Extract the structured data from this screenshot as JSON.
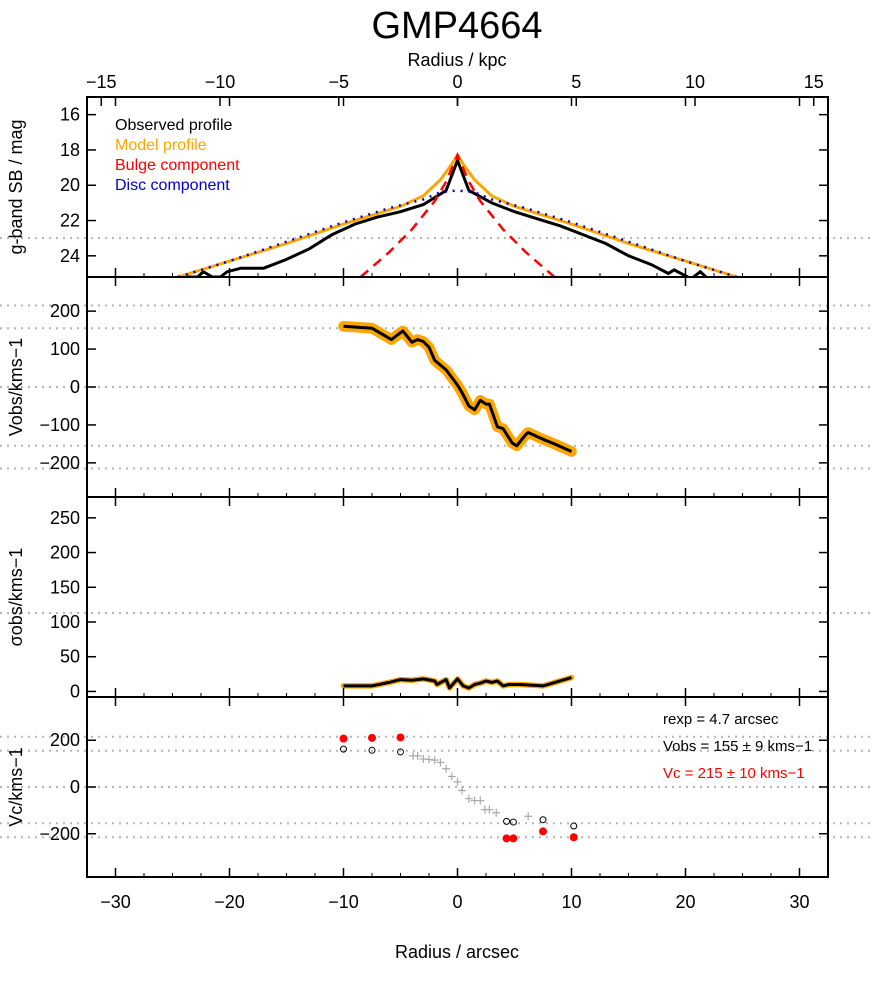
{
  "figure": {
    "title": "GMP4664",
    "top_axis_label": "Radius / kpc",
    "bottom_axis_label": "Radius / arcsec",
    "top_ticks": [
      "-15",
      "-10",
      "-5",
      "0",
      "5",
      "10",
      "15"
    ],
    "bottom_ticks": [
      "-30",
      "-20",
      "-10",
      "0",
      "10",
      "20",
      "30"
    ]
  },
  "chart_data": [
    {
      "panel": "surface-brightness",
      "type": "line",
      "ylabel": "g-band SB / mag",
      "xlim": [
        -32.5,
        32.5
      ],
      "ylim": [
        25.2,
        15.0
      ],
      "yticks": [
        "16",
        "18",
        "20",
        "22",
        "24"
      ],
      "xlim_kpc": [
        -15.6,
        15.6
      ],
      "reference_lines": [
        23.0
      ],
      "legend": [
        "Observed profile",
        "Model profile",
        "Bulge component",
        "Disc component"
      ],
      "colors": {
        "observed": "#000000",
        "model": "#FFA500",
        "bulge": "#FF0000",
        "disc": "#0000CC"
      },
      "series": [
        {
          "name": "Observed profile",
          "x": [
            -25,
            -24.5,
            -22.8,
            -22.3,
            -21.5,
            -20.8,
            -20.2,
            -19,
            -17,
            -15,
            -13,
            -11,
            -9,
            -7,
            -5,
            -3,
            -1,
            0,
            1,
            3,
            5,
            7,
            9,
            11,
            13,
            15,
            17,
            18.5,
            19,
            20.5,
            21.3,
            21.8,
            22.3
          ],
          "y": [
            25.5,
            25.2,
            25.2,
            24.9,
            25.2,
            25.2,
            24.9,
            24.7,
            24.7,
            24.2,
            23.6,
            22.8,
            22.2,
            21.8,
            21.5,
            21.1,
            20.3,
            18.6,
            20.3,
            21.0,
            21.5,
            21.9,
            22.3,
            22.8,
            23.3,
            24.0,
            24.5,
            25.0,
            24.8,
            25.3,
            24.9,
            25.2,
            25.4
          ]
        },
        {
          "name": "Model profile",
          "x": [
            -24.5,
            -20,
            -15,
            -10,
            -5,
            -3,
            -1.5,
            -0.5,
            0,
            0.5,
            1.5,
            3,
            5,
            10,
            15,
            20,
            24.5
          ],
          "y": [
            25.2,
            24.3,
            23.3,
            22.2,
            21.2,
            20.6,
            19.7,
            18.8,
            18.3,
            18.8,
            19.7,
            20.6,
            21.2,
            22.2,
            23.3,
            24.3,
            25.2
          ]
        },
        {
          "name": "Bulge component",
          "x": [
            -8.5,
            -6,
            -4,
            -2,
            -1,
            0,
            1,
            2,
            4,
            6,
            8.5
          ],
          "y": [
            25.2,
            23.8,
            22.5,
            20.9,
            19.8,
            18.3,
            19.8,
            20.9,
            22.5,
            23.8,
            25.2
          ]
        },
        {
          "name": "Disc component",
          "x": [
            -24.5,
            -20,
            -15,
            -10,
            -6,
            -3,
            -1.5,
            0,
            1.5,
            3,
            6,
            10,
            15,
            20,
            24.5
          ],
          "y": [
            25.2,
            24.3,
            23.2,
            22.1,
            21.3,
            20.8,
            20.4,
            20.3,
            20.4,
            20.8,
            21.3,
            22.1,
            23.2,
            24.3,
            25.2
          ]
        }
      ]
    },
    {
      "panel": "velocity",
      "type": "line",
      "ylabel": "Vobs/kms−1",
      "xlim": [
        -32.5,
        32.5
      ],
      "ylim": [
        -290,
        290
      ],
      "yticks": [
        "200",
        "100",
        "0",
        "−100",
        "−200"
      ],
      "reference_lines": [
        215,
        155,
        0,
        -155,
        -215
      ],
      "series": [
        {
          "name": "",
          "x": [
            -10,
            -7.5,
            -5.8,
            -4.8,
            -4,
            -3.5,
            -3,
            -2.5,
            -2,
            -1,
            0,
            0.4,
            1,
            1.5,
            2,
            2.5,
            2.8,
            3.5,
            4,
            4.8,
            5.2,
            5.6,
            6,
            6.2,
            7.5,
            8.5,
            10
          ],
          "y": [
            160,
            155,
            125,
            148,
            118,
            125,
            120,
            105,
            70,
            45,
            5,
            -15,
            -50,
            -60,
            -35,
            -45,
            -45,
            -105,
            -110,
            -148,
            -155,
            -140,
            -125,
            -120,
            -138,
            -150,
            -170
          ],
          "band": 28
        }
      ]
    },
    {
      "panel": "dispersion",
      "type": "line",
      "ylabel": "σobs/kms−1",
      "xlim": [
        -32.5,
        32.5
      ],
      "ylim": [
        -8,
        280
      ],
      "yticks": [
        "250",
        "200",
        "150",
        "100",
        "50",
        "0"
      ],
      "reference_lines": [
        113
      ],
      "series": [
        {
          "name": "",
          "x": [
            -10,
            -7.5,
            -6,
            -5,
            -4,
            -3,
            -2,
            -1.8,
            -1,
            -0.7,
            0,
            0.5,
            1,
            1.5,
            2,
            2.5,
            3,
            3.5,
            4,
            4.5,
            5,
            5.5,
            7.5,
            10
          ],
          "y": [
            8,
            8,
            13,
            17,
            16,
            18,
            15,
            10,
            17,
            5,
            18,
            8,
            5,
            10,
            12,
            15,
            13,
            15,
            8,
            10,
            10,
            10,
            8,
            20
          ],
          "band": 8
        }
      ]
    },
    {
      "panel": "circular-velocity",
      "type": "scatter",
      "ylabel": "Vc/kms−1",
      "xlim": [
        -32.5,
        32.5
      ],
      "ylim": [
        -385,
        385
      ],
      "yticks": [
        "200",
        "0",
        "−200"
      ],
      "reference_lines": [
        215,
        155,
        0,
        -155,
        -215
      ],
      "annotations": [
        "rexp = 4.7 arcsec",
        "Vobs = 155 ± 9 kms−1",
        "Vc = 215 ± 10 kms−1"
      ],
      "series": [
        {
          "name": "",
          "kind": "red-filled",
          "color": "#FF0000",
          "x": [
            -10,
            -7.5,
            -5,
            4.3,
            4.9,
            7.5,
            10.2
          ],
          "y": [
            207,
            210,
            212,
            -220,
            -220,
            -190,
            -215
          ]
        },
        {
          "name": "",
          "kind": "open-circle",
          "x": [
            -10,
            -7.5,
            -5,
            4.3,
            4.9,
            7.5,
            10.2
          ],
          "y": [
            162,
            157,
            150,
            -147,
            -150,
            -140,
            -167
          ]
        },
        {
          "name": "",
          "kind": "grey-cross",
          "color": "#AAAAAA",
          "x": [
            -3.9,
            -3.5,
            -3,
            -2.5,
            -2,
            -1.5,
            -1,
            -0.5,
            0,
            0.4,
            1,
            1.5,
            2,
            2.4,
            2.8,
            3.4,
            6.2
          ],
          "y": [
            133,
            133,
            120,
            118,
            115,
            105,
            78,
            45,
            22,
            -15,
            -50,
            -58,
            -58,
            -97,
            -97,
            -110,
            -125
          ]
        }
      ]
    }
  ]
}
